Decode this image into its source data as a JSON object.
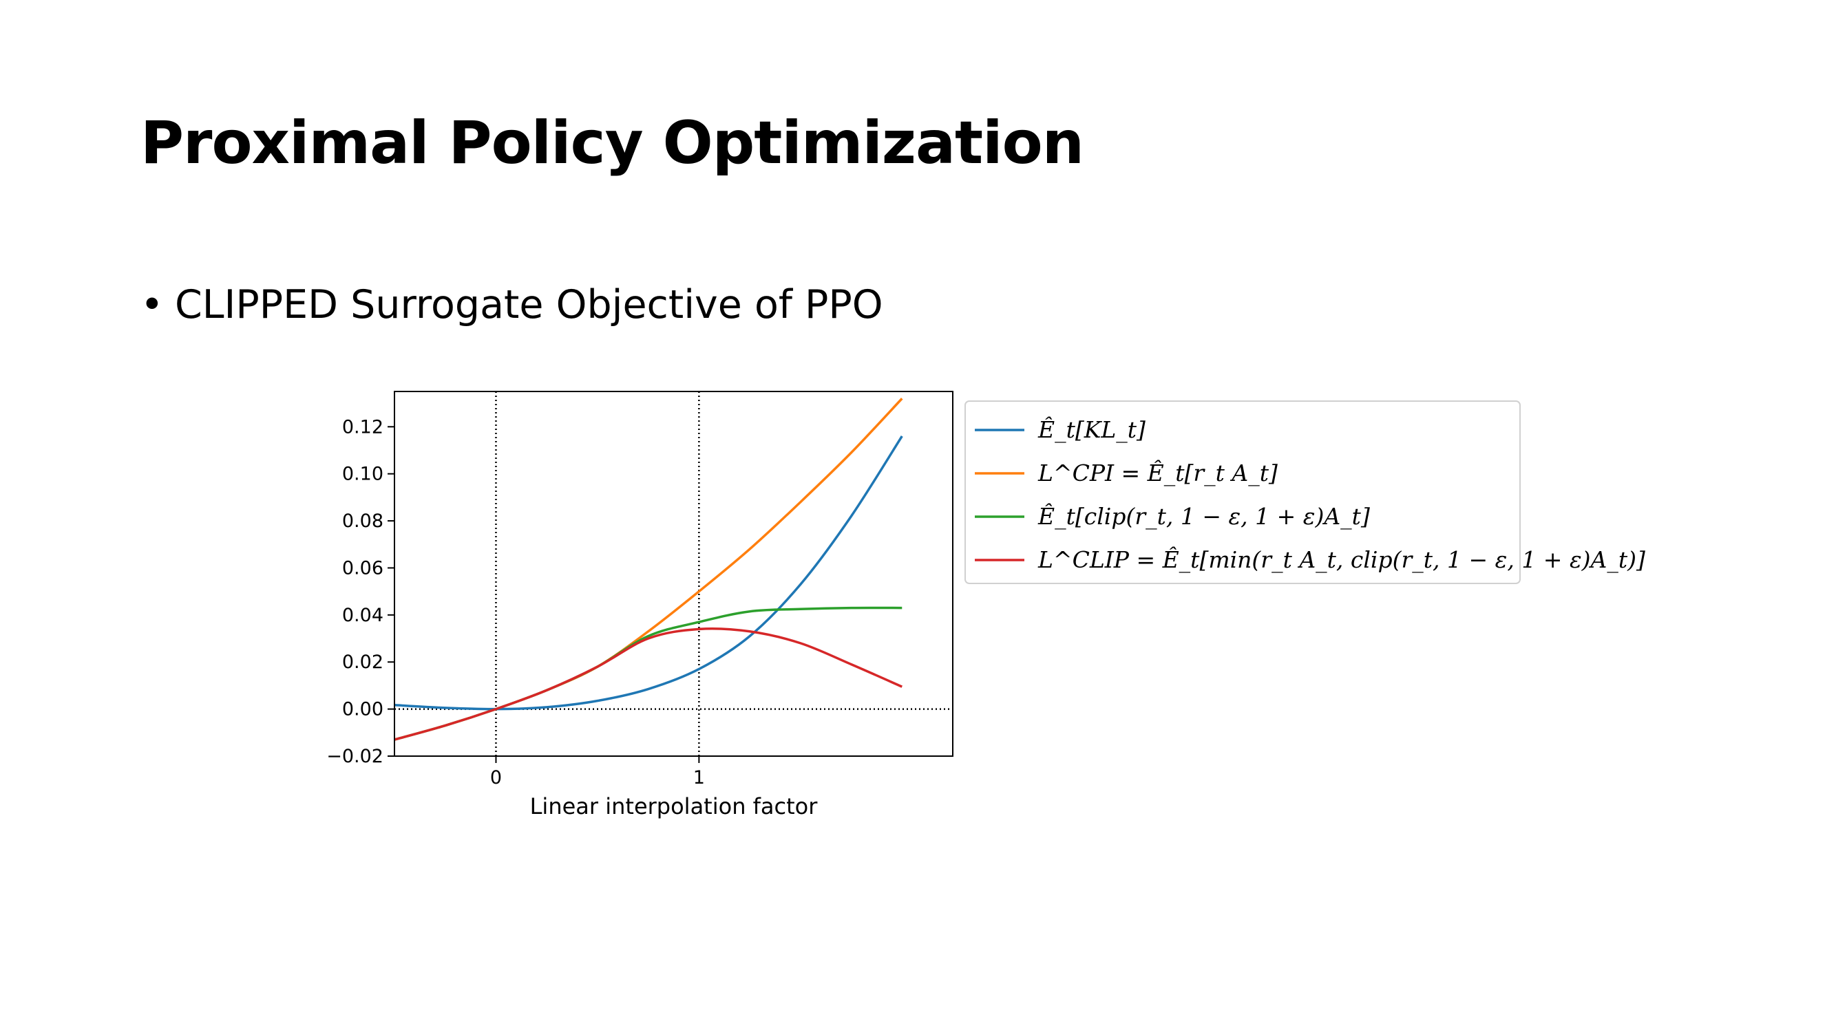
{
  "slide": {
    "title": "Proximal Policy Optimization",
    "bullet": "CLIPPED Surrogate Objective of PPO"
  },
  "chart_data": {
    "type": "line",
    "xlabel": "Linear interpolation factor",
    "ylabel": "",
    "xlim": [
      -0.5,
      2.25
    ],
    "ylim": [
      -0.02,
      0.135
    ],
    "x_ticks": [
      0,
      1
    ],
    "y_ticks": [
      -0.02,
      0.0,
      0.02,
      0.04,
      0.06,
      0.08,
      0.1,
      0.12
    ],
    "y_tick_labels": [
      "−0.02",
      "0.00",
      "0.02",
      "0.04",
      "0.06",
      "0.08",
      "0.10",
      "0.12"
    ],
    "reference_lines": {
      "vertical_x": [
        0,
        1
      ],
      "horizontal_y": [
        0
      ]
    },
    "legend_position": "outside-right-top",
    "x": [
      -0.5,
      -0.25,
      0.0,
      0.25,
      0.5,
      0.75,
      1.0,
      1.25,
      1.5,
      1.75,
      2.0
    ],
    "series": [
      {
        "name": "Ê_t[KL_t]",
        "color": "#1f77b4",
        "values": [
          0.0017,
          0.0005,
          0.0,
          0.0008,
          0.0035,
          0.0085,
          0.017,
          0.031,
          0.053,
          0.082,
          0.116
        ]
      },
      {
        "name": "L^CPI = Ê_t[r_t A_t]",
        "color": "#ff7f0e",
        "values": [
          -0.013,
          -0.007,
          0.0,
          0.008,
          0.018,
          0.033,
          0.05,
          0.068,
          0.088,
          0.109,
          0.132
        ]
      },
      {
        "name": "Ê_t[clip(r_t, 1 − ε, 1 + ε)A_t]",
        "color": "#2ca02c",
        "values": [
          -0.013,
          -0.007,
          0.0,
          0.008,
          0.018,
          0.031,
          0.037,
          0.0415,
          0.0425,
          0.043,
          0.043
        ]
      },
      {
        "name": "L^CLIP = Ê_t[min(r_t A_t, clip(r_t, 1 − ε, 1 + ε)A_t)]",
        "color": "#d62728",
        "values": [
          -0.013,
          -0.007,
          0.0,
          0.008,
          0.018,
          0.03,
          0.034,
          0.033,
          0.028,
          0.019,
          0.0095
        ]
      }
    ]
  }
}
